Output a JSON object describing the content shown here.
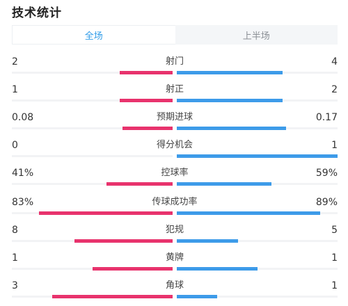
{
  "title": "技术统计",
  "tabs": [
    {
      "label": "全场",
      "active": true
    },
    {
      "label": "上半场",
      "active": false
    }
  ],
  "colors": {
    "home": "#e8336d",
    "away": "#3d9be9"
  },
  "stats": [
    {
      "label": "射门",
      "home": "2",
      "away": "4",
      "home_fill": 0.33,
      "away_fill": 0.66
    },
    {
      "label": "射正",
      "home": "1",
      "away": "2",
      "home_fill": 0.33,
      "away_fill": 0.66
    },
    {
      "label": "预期进球",
      "home": "0.08",
      "away": "0.17",
      "home_fill": 0.31,
      "away_fill": 0.68
    },
    {
      "label": "得分机会",
      "home": "0",
      "away": "1",
      "home_fill": 0.0,
      "away_fill": 1.0
    },
    {
      "label": "控球率",
      "home": "41%",
      "away": "59%",
      "home_fill": 0.41,
      "away_fill": 0.59
    },
    {
      "label": "传球成功率",
      "home": "83%",
      "away": "89%",
      "home_fill": 0.83,
      "away_fill": 0.89
    },
    {
      "label": "犯规",
      "home": "8",
      "away": "5",
      "home_fill": 0.61,
      "away_fill": 0.38
    },
    {
      "label": "黄牌",
      "home": "1",
      "away": "1",
      "home_fill": 0.5,
      "away_fill": 0.5
    },
    {
      "label": "角球",
      "home": "3",
      "away": "1",
      "home_fill": 0.75,
      "away_fill": 0.25
    }
  ]
}
